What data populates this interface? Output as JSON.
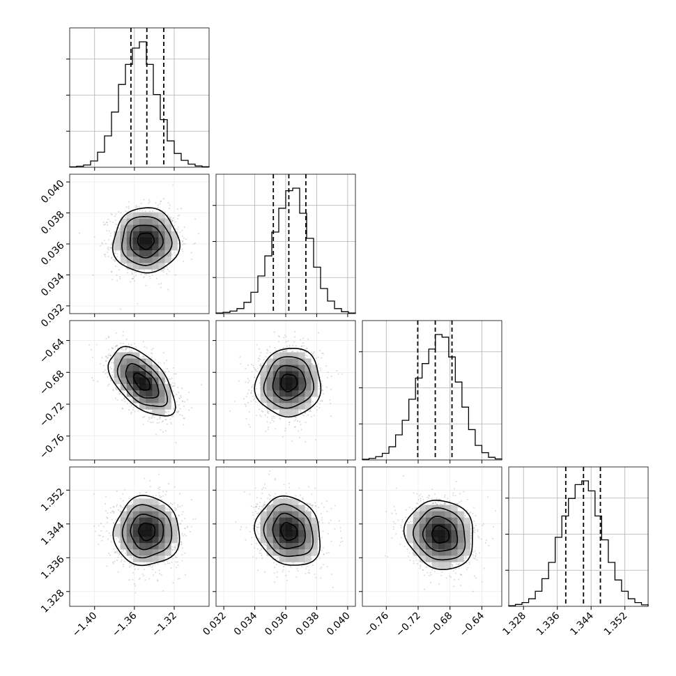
{
  "chart_data": {
    "type": "corner",
    "parameters": [
      {
        "index": 0,
        "range": [
          -1.425,
          -1.285
        ],
        "ticks": [
          -1.4,
          -1.36,
          -1.32
        ],
        "tick_labels": [
          "−1.40",
          "−1.36",
          "−1.32"
        ],
        "quantiles": [
          -1.3635,
          -1.3475,
          -1.3305
        ],
        "hist": [
          0.003,
          0.008,
          0.018,
          0.05,
          0.12,
          0.25,
          0.44,
          0.66,
          0.82,
          0.95,
          1.0,
          0.82,
          0.58,
          0.38,
          0.21,
          0.11,
          0.055,
          0.025,
          0.01,
          0.004
        ]
      },
      {
        "index": 1,
        "range": [
          0.0315,
          0.0405
        ],
        "ticks": [
          0.032,
          0.034,
          0.036,
          0.038,
          0.04
        ],
        "tick_labels": [
          "0.032",
          "0.034",
          "0.036",
          "0.038",
          "0.040"
        ],
        "quantiles": [
          0.0352,
          0.0362,
          0.0373
        ],
        "hist": [
          0.005,
          0.01,
          0.02,
          0.04,
          0.09,
          0.17,
          0.3,
          0.46,
          0.65,
          0.84,
          0.98,
          1.0,
          0.8,
          0.6,
          0.37,
          0.2,
          0.1,
          0.04,
          0.015,
          0.005
        ]
      },
      {
        "index": 2,
        "range": [
          -0.79,
          -0.615
        ],
        "ticks": [
          -0.76,
          -0.72,
          -0.68,
          -0.64
        ],
        "tick_labels": [
          "−0.76",
          "−0.72",
          "−0.68",
          "−0.64"
        ],
        "quantiles": [
          -0.7205,
          -0.6985,
          -0.6775
        ],
        "hist": [
          0.005,
          0.012,
          0.025,
          0.05,
          0.1,
          0.19,
          0.3,
          0.46,
          0.62,
          0.73,
          0.84,
          0.95,
          0.93,
          0.78,
          0.59,
          0.4,
          0.23,
          0.11,
          0.055,
          0.02,
          0.008
        ]
      },
      {
        "index": 3,
        "range": [
          1.3245,
          1.3575
        ],
        "ticks": [
          1.328,
          1.336,
          1.344,
          1.352
        ],
        "tick_labels": [
          "1.328",
          "1.336",
          "1.344",
          "1.352"
        ],
        "quantiles": [
          1.338,
          1.3422,
          1.3462
        ],
        "hist": [
          0.005,
          0.015,
          0.03,
          0.06,
          0.12,
          0.22,
          0.35,
          0.55,
          0.72,
          0.86,
          0.97,
          1.0,
          0.92,
          0.72,
          0.53,
          0.35,
          0.21,
          0.12,
          0.06,
          0.03,
          0.012
        ]
      }
    ],
    "pairs": [
      {
        "x": 0,
        "y": 1,
        "center": [
          -1.3485,
          0.0362
        ],
        "rho": 0.0
      },
      {
        "x": 0,
        "y": 2,
        "center": [
          -1.3525,
          -0.692
        ],
        "rho": -0.55
      },
      {
        "x": 1,
        "y": 2,
        "center": [
          0.0362,
          -0.693
        ],
        "rho": 0.05
      },
      {
        "x": 0,
        "y": 3,
        "center": [
          -1.3475,
          1.3422
        ],
        "rho": 0.0
      },
      {
        "x": 1,
        "y": 3,
        "center": [
          0.0362,
          1.3422
        ],
        "rho": -0.15
      },
      {
        "x": 2,
        "y": 3,
        "center": [
          -0.692,
          1.3415
        ],
        "rho": -0.1
      }
    ],
    "contour_levels_sigma": [
      0.5,
      1.0,
      1.5,
      2.0
    ],
    "grid": true,
    "colors": {
      "line": "#000000",
      "grid": "#b0b0b0",
      "points": "#9a9a9a"
    }
  }
}
